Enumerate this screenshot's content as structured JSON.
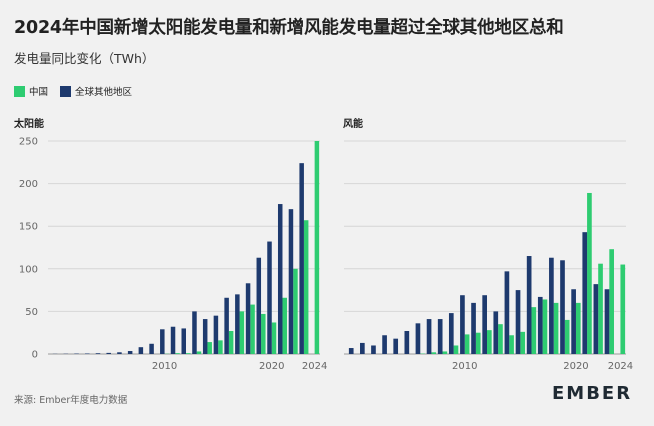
{
  "header": {
    "title": "2024年中国新增太阳能发电量和新增风能发电量超过全球其他地区总和",
    "subtitle": "发电量同比变化（TWh）"
  },
  "legend": {
    "items": [
      {
        "label": "中国",
        "color": "#2ecc71"
      },
      {
        "label": "全球其他地区",
        "color": "#1e3a6e"
      }
    ]
  },
  "footer": {
    "source": "来源: Ember年度电力数据",
    "logo": "EMBER"
  },
  "chart_data": [
    {
      "type": "bar",
      "title": "太阳能",
      "x": [
        2000,
        2001,
        2002,
        2003,
        2004,
        2005,
        2006,
        2007,
        2008,
        2009,
        2010,
        2011,
        2012,
        2013,
        2014,
        2015,
        2016,
        2017,
        2018,
        2019,
        2020,
        2021,
        2022,
        2023,
        2024
      ],
      "series": [
        {
          "name": "中国",
          "color": "#2ecc71",
          "values": [
            0,
            0,
            0,
            0,
            0,
            0,
            0,
            0,
            0,
            0,
            0.3,
            1,
            1,
            3,
            14,
            16,
            27,
            50,
            58,
            47,
            37,
            66,
            100,
            157,
            250
          ]
        },
        {
          "name": "全球其他地区",
          "color": "#1e3a6e",
          "values": [
            0.2,
            0.3,
            0.5,
            0.6,
            0.9,
            1.3,
            2,
            3.5,
            8,
            12,
            29,
            32,
            30,
            50,
            41,
            45,
            66,
            70,
            83,
            113,
            132,
            176,
            170,
            224,
            0
          ]
        }
      ],
      "ylim": [
        0,
        250
      ],
      "yticks": [
        0,
        50,
        100,
        150,
        200,
        250
      ],
      "xticks": [
        2010,
        2020,
        2024
      ],
      "grid": true
    },
    {
      "type": "bar",
      "title": "风能",
      "x": [
        2000,
        2001,
        2002,
        2003,
        2004,
        2005,
        2006,
        2007,
        2008,
        2009,
        2010,
        2011,
        2012,
        2013,
        2014,
        2015,
        2016,
        2017,
        2018,
        2019,
        2020,
        2021,
        2022,
        2023,
        2024
      ],
      "series": [
        {
          "name": "中国",
          "color": "#2ecc71",
          "values": [
            0,
            0,
            0,
            0,
            0,
            0,
            0.5,
            2,
            3,
            10,
            23,
            25,
            28,
            35,
            22,
            26,
            55,
            64,
            60,
            40,
            60,
            189,
            106,
            123,
            105
          ]
        },
        {
          "name": "全球其他地区",
          "color": "#1e3a6e",
          "values": [
            7,
            13,
            10,
            22,
            18,
            27,
            36,
            41,
            41,
            48,
            69,
            60,
            69,
            50,
            97,
            75,
            115,
            67,
            113,
            110,
            76,
            143,
            82,
            76,
            0
          ]
        }
      ],
      "ylim": [
        0,
        250
      ],
      "yticks": [
        0,
        50,
        100,
        150,
        200,
        250
      ],
      "xticks": [
        2010,
        2020,
        2024
      ],
      "grid": true
    }
  ]
}
